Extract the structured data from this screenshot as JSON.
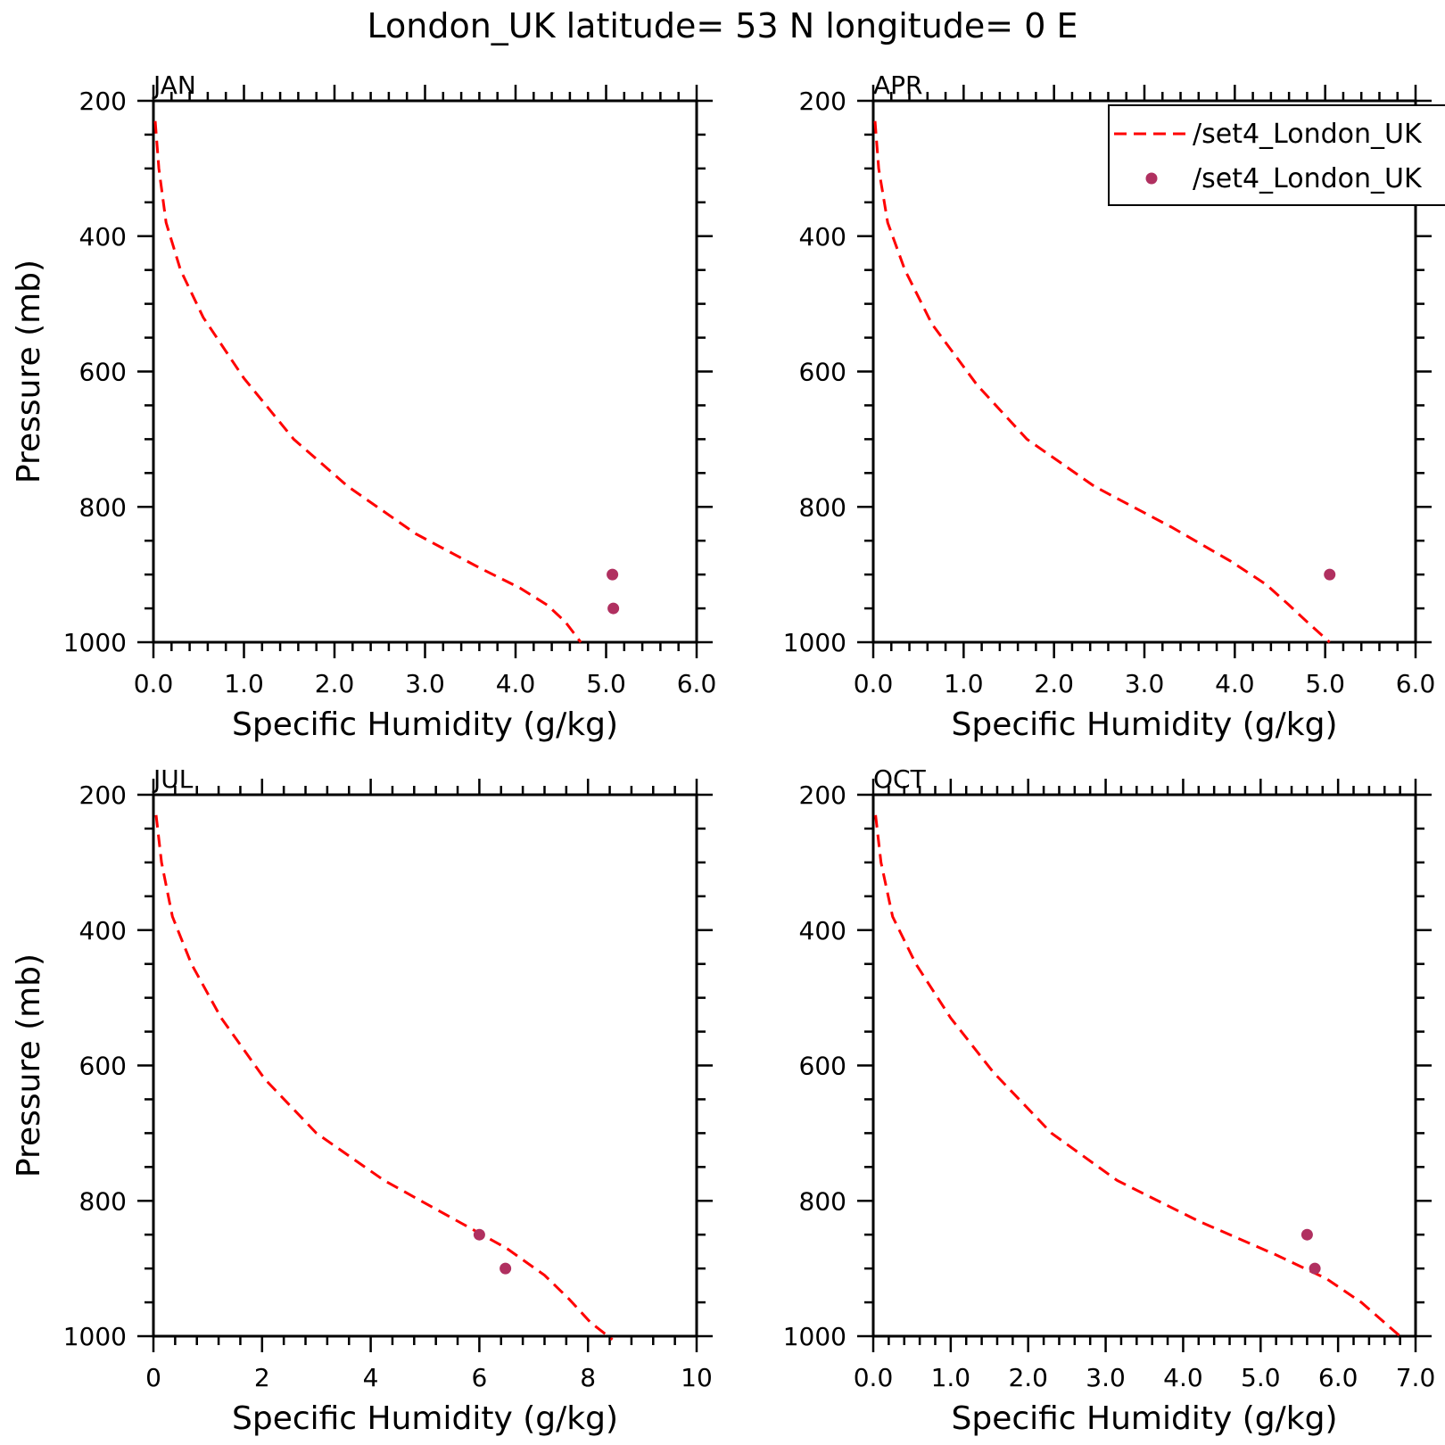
{
  "title": "London_UK  latitude= 53 N longitude= 0 E",
  "chart_data": [
    {
      "type": "line",
      "panel": "JAN",
      "xlabel": "Specific Humidity (g/kg)",
      "ylabel": "Pressure (mb)",
      "xlim": [
        0,
        6
      ],
      "ylim": [
        200,
        1000
      ],
      "y_inverted": true,
      "xticks": [
        0,
        1,
        2,
        3,
        4,
        5,
        6
      ],
      "xtick_labels": [
        "0.0",
        "1.0",
        "2.0",
        "3.0",
        "4.0",
        "5.0",
        "6.0"
      ],
      "yticks": [
        200,
        400,
        600,
        800,
        1000
      ],
      "ytick_labels": [
        "200",
        "400",
        "600",
        "800",
        "1000"
      ],
      "series": [
        {
          "style": "dashed",
          "color": "#ff0000",
          "x": [
            0.02,
            0.06,
            0.14,
            0.3,
            0.55,
            1.0,
            1.55,
            2.15,
            2.9,
            3.6,
            4.05,
            4.35,
            4.55,
            4.72
          ],
          "y": [
            230,
            300,
            380,
            450,
            520,
            610,
            700,
            770,
            840,
            890,
            920,
            945,
            970,
            1000
          ]
        },
        {
          "style": "markers",
          "color": "#b03060",
          "x": [
            5.07,
            5.08
          ],
          "y": [
            900,
            950
          ]
        }
      ]
    },
    {
      "type": "line",
      "panel": "APR",
      "xlabel": "Specific Humidity (g/kg)",
      "ylabel": "",
      "xlim": [
        0,
        6
      ],
      "ylim": [
        200,
        1000
      ],
      "y_inverted": true,
      "xticks": [
        0,
        1,
        2,
        3,
        4,
        5,
        6
      ],
      "xtick_labels": [
        "0.0",
        "1.0",
        "2.0",
        "3.0",
        "4.0",
        "5.0",
        "6.0"
      ],
      "yticks": [
        200,
        400,
        600,
        800,
        1000
      ],
      "ytick_labels": [
        "200",
        "400",
        "600",
        "800",
        "1000"
      ],
      "series": [
        {
          "style": "dashed",
          "color": "#ff0000",
          "x": [
            0.02,
            0.06,
            0.16,
            0.35,
            0.65,
            1.15,
            1.7,
            2.45,
            3.3,
            3.95,
            4.35,
            4.6,
            4.8,
            5.05
          ],
          "y": [
            230,
            300,
            380,
            450,
            530,
            620,
            700,
            770,
            830,
            880,
            915,
            945,
            970,
            1000
          ]
        },
        {
          "style": "markers",
          "color": "#b03060",
          "x": [
            5.05
          ],
          "y": [
            900
          ]
        }
      ]
    },
    {
      "type": "line",
      "panel": "JUL",
      "xlabel": "Specific Humidity (g/kg)",
      "ylabel": "Pressure (mb)",
      "xlim": [
        0,
        10
      ],
      "ylim": [
        200,
        1000
      ],
      "y_inverted": true,
      "xticks": [
        0,
        2,
        4,
        6,
        8,
        10
      ],
      "xtick_labels": [
        "0",
        "2",
        "4",
        "6",
        "8",
        "10"
      ],
      "yticks": [
        200,
        400,
        600,
        800,
        1000
      ],
      "ytick_labels": [
        "200",
        "400",
        "600",
        "800",
        "1000"
      ],
      "series": [
        {
          "style": "dashed",
          "color": "#ff0000",
          "x": [
            0.05,
            0.15,
            0.35,
            0.7,
            1.25,
            2.05,
            3.0,
            4.25,
            5.6,
            6.5,
            7.2,
            7.65,
            8.05,
            8.45
          ],
          "y": [
            230,
            300,
            380,
            450,
            530,
            620,
            700,
            770,
            830,
            870,
            910,
            945,
            980,
            1005
          ]
        },
        {
          "style": "markers",
          "color": "#b03060",
          "x": [
            6.0,
            6.48
          ],
          "y": [
            850,
            900
          ]
        }
      ]
    },
    {
      "type": "line",
      "panel": "OCT",
      "xlabel": "Specific Humidity (g/kg)",
      "ylabel": "",
      "xlim": [
        0,
        7
      ],
      "ylim": [
        200,
        1000
      ],
      "y_inverted": true,
      "xticks": [
        0,
        1,
        2,
        3,
        4,
        5,
        6,
        7
      ],
      "xtick_labels": [
        "0.0",
        "1.0",
        "2.0",
        "3.0",
        "4.0",
        "5.0",
        "6.0",
        "7.0"
      ],
      "yticks": [
        200,
        400,
        600,
        800,
        1000
      ],
      "ytick_labels": [
        "200",
        "400",
        "600",
        "800",
        "1000"
      ],
      "series": [
        {
          "style": "dashed",
          "color": "#ff0000",
          "x": [
            0.03,
            0.1,
            0.25,
            0.55,
            1.0,
            1.55,
            2.3,
            3.15,
            4.2,
            5.2,
            5.85,
            6.3,
            6.55,
            6.85
          ],
          "y": [
            230,
            300,
            380,
            450,
            530,
            610,
            700,
            770,
            830,
            880,
            915,
            950,
            975,
            1005
          ]
        },
        {
          "style": "markers",
          "color": "#b03060",
          "x": [
            5.6,
            5.7
          ],
          "y": [
            850,
            900
          ]
        }
      ]
    }
  ],
  "legend": {
    "placement": "top-right of APR panel (clipped at figure edge)",
    "entries": [
      {
        "label": "/set4_London_UK",
        "style": "dashed",
        "color": "#ff0000"
      },
      {
        "label": "/set4_London_UK",
        "style": "markers",
        "color": "#b03060"
      }
    ]
  }
}
